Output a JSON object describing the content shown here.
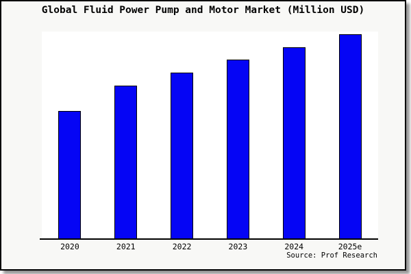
{
  "title": "Global Fluid Power Pump and Motor Market (Million USD)",
  "source": "Source: Prof Research",
  "colors": {
    "bar_fill": "#0505f5",
    "bar_border": "#000000",
    "axis": "#000000",
    "plot_background": "#ffffff",
    "outer_background": "#f8f8f6",
    "frame_border": "#000000"
  },
  "chart_data": {
    "type": "bar",
    "title": "Global Fluid Power Pump and Motor Market (Million USD)",
    "categories": [
      "2020",
      "2021",
      "2022",
      "2023",
      "2024",
      "2025e"
    ],
    "values": [
      62.7,
      75.0,
      81.3,
      87.7,
      93.7,
      100.0
    ],
    "value_note": "No numeric y-axis shown; values are bar heights as percent of the tallest (2025e) bar",
    "xlabel": "",
    "ylabel": "",
    "ylim": [
      0,
      100
    ],
    "grid": false,
    "legend": false,
    "annotation": "Source: Prof Research"
  }
}
